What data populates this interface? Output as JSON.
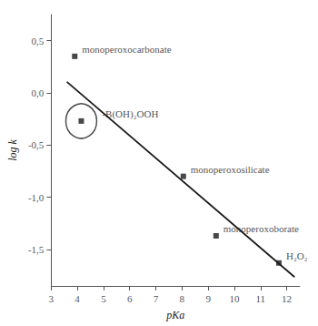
{
  "chart_data": {
    "type": "scatter",
    "xlabel": "pKa",
    "ylabel": "log k",
    "xlim": [
      3,
      12.5
    ],
    "ylim": [
      -1.85,
      0.75
    ],
    "xticks": [
      3,
      4,
      5,
      6,
      7,
      8,
      9,
      10,
      11,
      12
    ],
    "yticks": [
      {
        "value": 0.5,
        "label": "0,5"
      },
      {
        "value": 0.0,
        "label": "0,0"
      },
      {
        "value": -0.5,
        "label": "-0,5"
      },
      {
        "value": -1.0,
        "label": "-1,0"
      },
      {
        "value": -1.5,
        "label": "-1,5"
      }
    ],
    "grid": false,
    "series": [
      {
        "type": "line",
        "x": [
          3.6,
          12.3
        ],
        "values": [
          0.106,
          -1.7645
        ],
        "color": "#1a1a1a",
        "line_style": "solid"
      },
      {
        "type": "scatter",
        "x": [
          3.9,
          4.15,
          8.05,
          9.3,
          11.7
        ],
        "values": [
          0.35,
          -0.27,
          -0.8,
          -1.37,
          -1.63
        ],
        "labels": [
          "monoperoxocarbonate",
          "-B(OH)₂OOH",
          "monoperoxosilicate",
          "monoperoxoborate",
          "H₂O₂"
        ],
        "color": "#1a1a1a",
        "marker": "square"
      }
    ],
    "annotations": [
      {
        "shape": "ellipse",
        "x": 4.15,
        "y": -0.27,
        "color": "#1a1a1a"
      }
    ]
  }
}
